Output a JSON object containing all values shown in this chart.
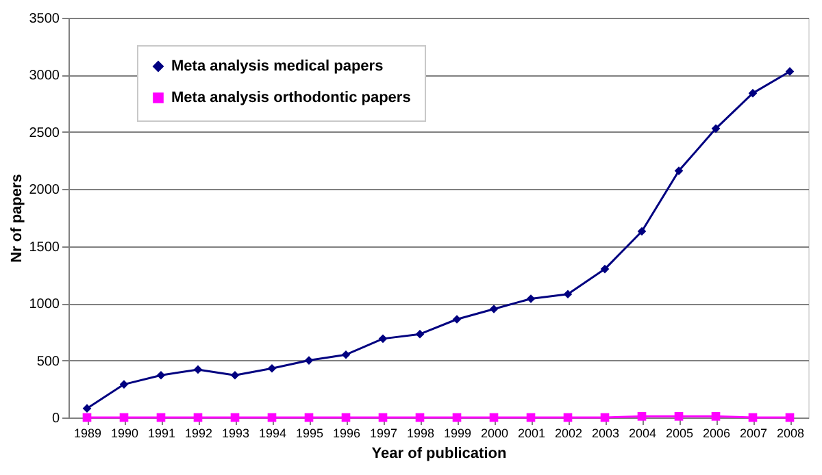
{
  "chart_data": {
    "type": "line",
    "xlabel": "Year of publication",
    "ylabel": "Nr of papers",
    "categories": [
      "1989",
      "1990",
      "1991",
      "1992",
      "1993",
      "1994",
      "1995",
      "1996",
      "1997",
      "1998",
      "1999",
      "2000",
      "2001",
      "2002",
      "2003",
      "2004",
      "2005",
      "2006",
      "2007",
      "2008"
    ],
    "series": [
      {
        "name": "Meta analysis medical papers",
        "color": "#000080",
        "marker": "diamond",
        "values": [
          80,
          290,
          370,
          420,
          370,
          430,
          500,
          550,
          690,
          730,
          860,
          950,
          1040,
          1080,
          1300,
          1630,
          2160,
          2530,
          2840,
          3030
        ]
      },
      {
        "name": "Meta analysis orthodontic papers",
        "color": "#ff00ff",
        "marker": "square",
        "values": [
          0,
          0,
          0,
          0,
          0,
          0,
          0,
          0,
          0,
          0,
          0,
          0,
          0,
          0,
          0,
          10,
          10,
          10,
          0,
          0
        ]
      }
    ],
    "ylim": [
      0,
      3500
    ],
    "yticks": [
      0,
      500,
      1000,
      1500,
      2000,
      2500,
      3000,
      3500
    ],
    "grid": "y",
    "legend": "top left"
  }
}
